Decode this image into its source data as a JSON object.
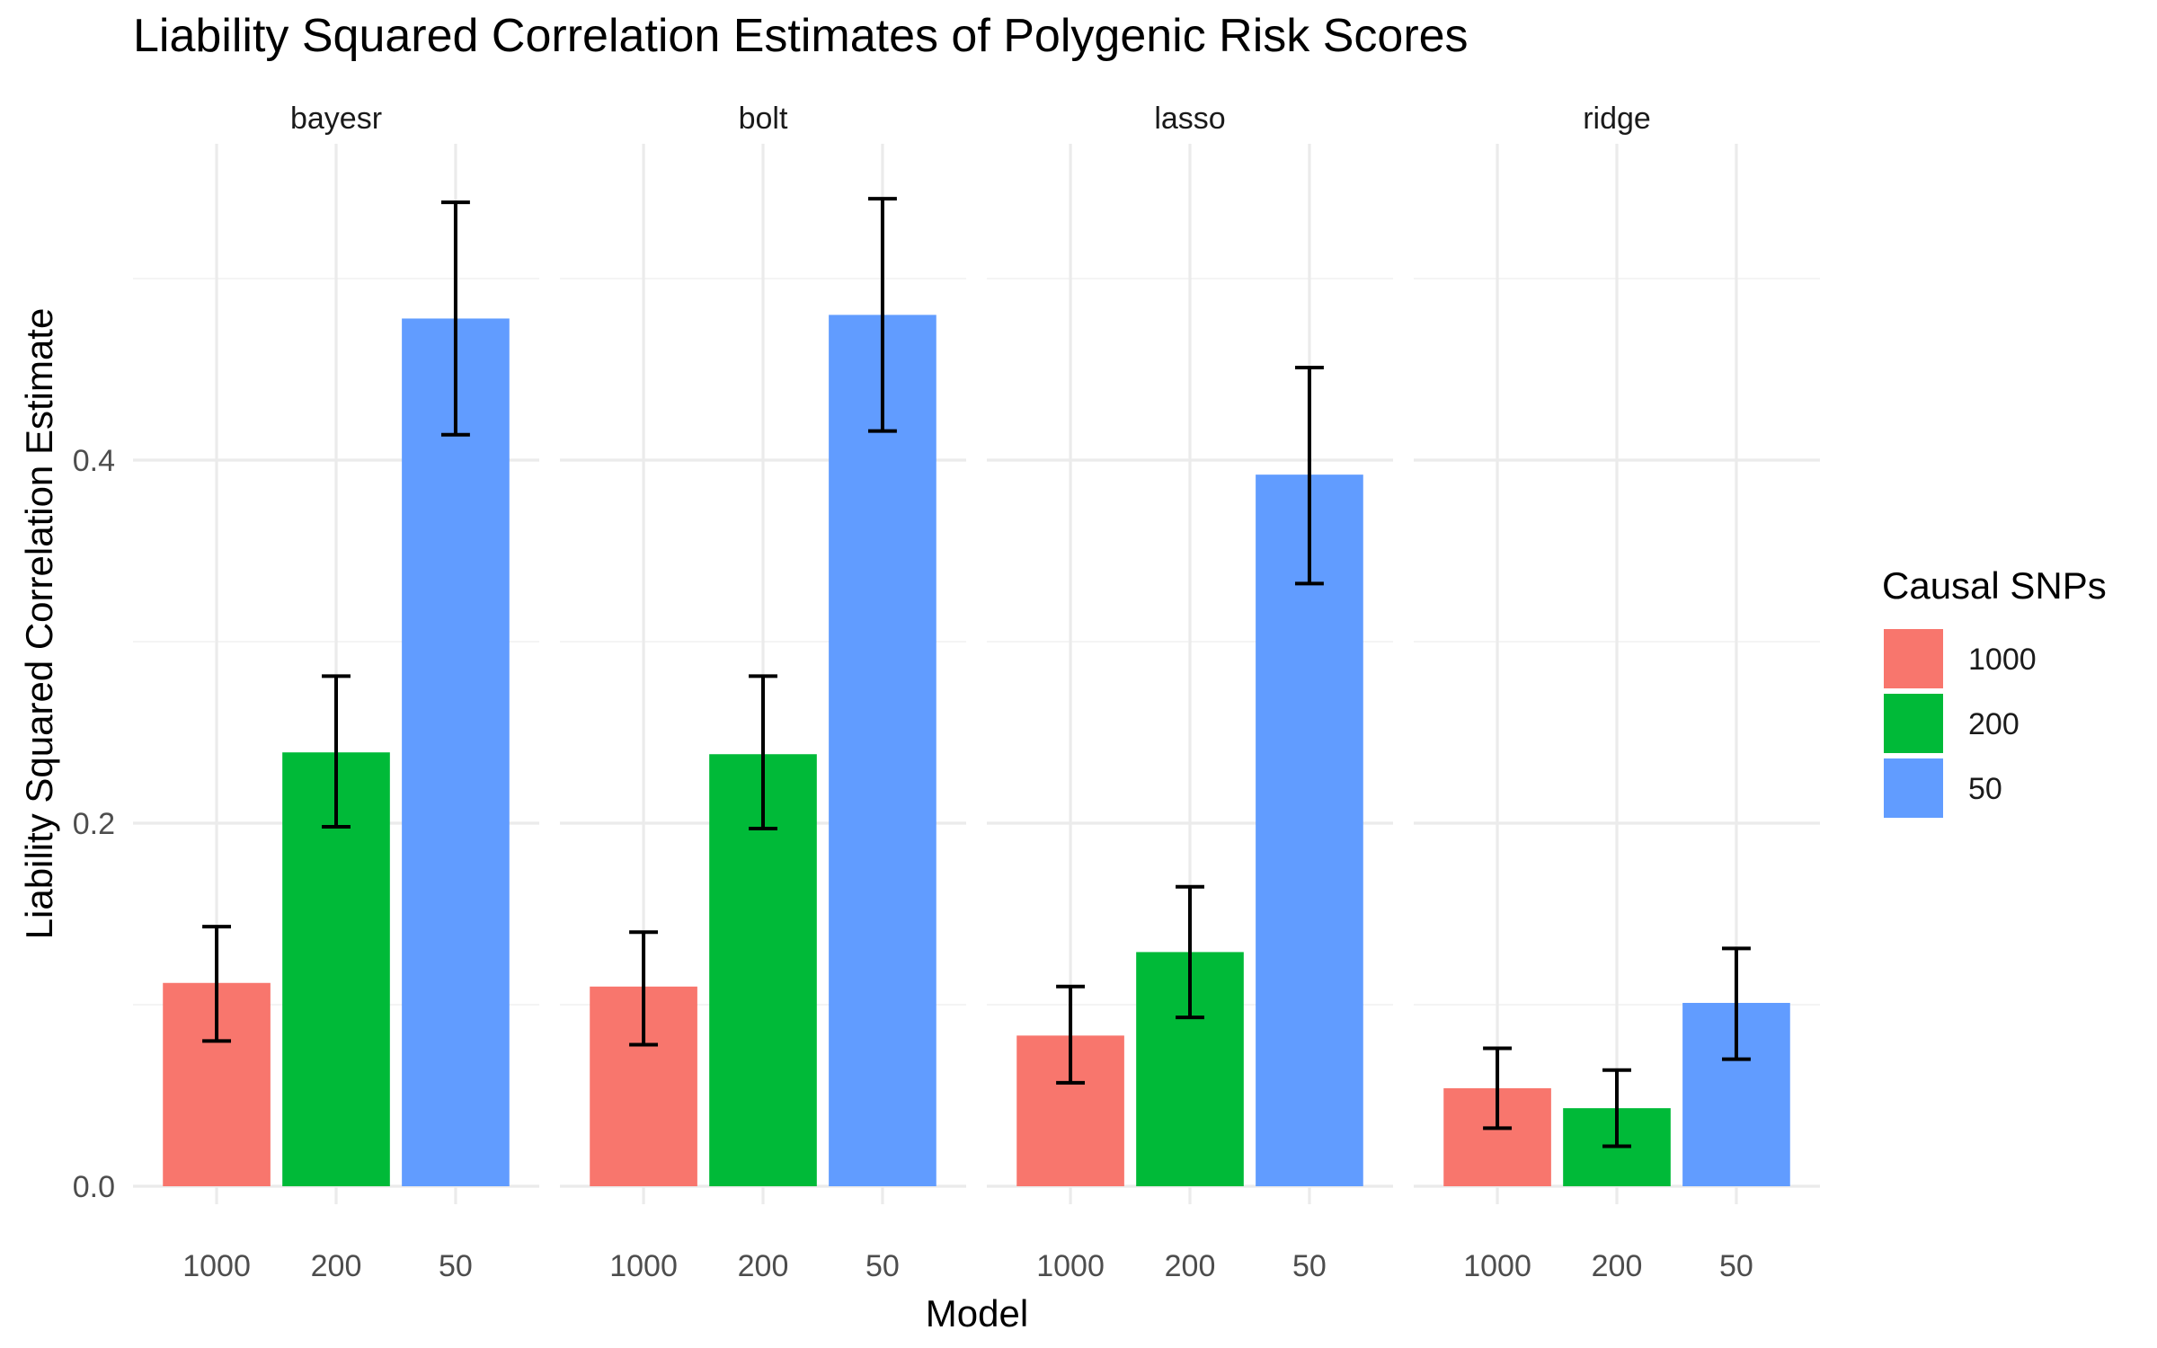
{
  "chart_data": {
    "type": "bar",
    "title": "Liability Squared Correlation Estimates of Polygenic Risk Scores",
    "xlabel": "Model",
    "ylabel": "Liability Squared Correlation Estimate",
    "facets": [
      "bayesr",
      "bolt",
      "lasso",
      "ridge"
    ],
    "categories": [
      "1000",
      "200",
      "50"
    ],
    "ylim": [
      0,
      0.54
    ],
    "y_ticks": [
      0.0,
      0.2,
      0.4
    ],
    "y_tick_labels": [
      "0.0",
      "0.2",
      "0.4"
    ],
    "legend": {
      "title": "Causal SNPs",
      "position": "right",
      "entries": [
        {
          "label": "1000",
          "color": "#F8766D"
        },
        {
          "label": "200",
          "color": "#00BA38"
        },
        {
          "label": "50",
          "color": "#619CFF"
        }
      ]
    },
    "grid": true,
    "series": [
      {
        "facet": "bayesr",
        "values": [
          0.112,
          0.239,
          0.478
        ],
        "lower": [
          0.08,
          0.198,
          0.414
        ],
        "upper": [
          0.143,
          0.281,
          0.542
        ]
      },
      {
        "facet": "bolt",
        "values": [
          0.11,
          0.238,
          0.48
        ],
        "lower": [
          0.078,
          0.197,
          0.416
        ],
        "upper": [
          0.14,
          0.281,
          0.544
        ]
      },
      {
        "facet": "lasso",
        "values": [
          0.083,
          0.129,
          0.392
        ],
        "lower": [
          0.057,
          0.093,
          0.332
        ],
        "upper": [
          0.11,
          0.165,
          0.451
        ]
      },
      {
        "facet": "ridge",
        "values": [
          0.054,
          0.043,
          0.101
        ],
        "lower": [
          0.032,
          0.022,
          0.07
        ],
        "upper": [
          0.076,
          0.064,
          0.131
        ]
      }
    ]
  }
}
